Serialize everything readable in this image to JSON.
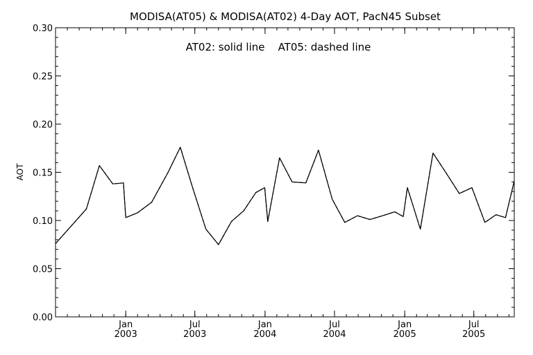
{
  "chart_data": {
    "type": "line",
    "title": "MODISA(AT05) & MODISA(AT02) 4-Day AOT, PacN45 Subset",
    "annotation": "AT02: solid line    AT05: dashed line",
    "xlabel": "",
    "ylabel": "AOT",
    "ylim": [
      0.0,
      0.3
    ],
    "yticks": [
      "0.00",
      "0.05",
      "0.10",
      "0.15",
      "0.20",
      "0.25",
      "0.30"
    ],
    "xlim": [
      "2002-07-01",
      "2005-10-15"
    ],
    "xticks": [
      {
        "date": "2003-01-01",
        "line1": "Jan",
        "line2": "2003"
      },
      {
        "date": "2003-07-01",
        "line1": "Jul",
        "line2": "2003"
      },
      {
        "date": "2004-01-01",
        "line1": "Jan",
        "line2": "2004"
      },
      {
        "date": "2004-07-01",
        "line1": "Jul",
        "line2": "2004"
      },
      {
        "date": "2005-01-01",
        "line1": "Jan",
        "line2": "2005"
      },
      {
        "date": "2005-07-01",
        "line1": "Jul",
        "line2": "2005"
      }
    ],
    "grid": false,
    "series": [
      {
        "name": "AT02",
        "style": "solid",
        "color": "#000000",
        "points": [
          [
            "2002-07-01",
            0.076
          ],
          [
            "2002-09-20",
            0.112
          ],
          [
            "2002-10-24",
            0.157
          ],
          [
            "2002-11-28",
            0.138
          ],
          [
            "2002-12-26",
            0.139
          ],
          [
            "2003-01-01",
            0.103
          ],
          [
            "2003-02-01",
            0.108
          ],
          [
            "2003-03-10",
            0.119
          ],
          [
            "2003-04-22",
            0.15
          ],
          [
            "2003-05-24",
            0.176
          ],
          [
            "2003-06-26",
            0.133
          ],
          [
            "2003-07-30",
            0.091
          ],
          [
            "2003-09-01",
            0.075
          ],
          [
            "2003-10-05",
            0.099
          ],
          [
            "2003-11-06",
            0.11
          ],
          [
            "2003-12-08",
            0.129
          ],
          [
            "2003-12-31",
            0.134
          ],
          [
            "2004-01-08",
            0.099
          ],
          [
            "2004-02-08",
            0.165
          ],
          [
            "2004-03-12",
            0.14
          ],
          [
            "2004-04-17",
            0.139
          ],
          [
            "2004-05-20",
            0.173
          ],
          [
            "2004-06-25",
            0.122
          ],
          [
            "2004-07-28",
            0.098
          ],
          [
            "2004-08-30",
            0.105
          ],
          [
            "2004-10-02",
            0.101
          ],
          [
            "2004-11-04",
            0.105
          ],
          [
            "2004-12-06",
            0.109
          ],
          [
            "2004-12-28",
            0.104
          ],
          [
            "2005-01-08",
            0.134
          ],
          [
            "2005-02-11",
            0.091
          ],
          [
            "2005-03-16",
            0.17
          ],
          [
            "2005-04-20",
            0.149
          ],
          [
            "2005-05-24",
            0.128
          ],
          [
            "2005-06-26",
            0.134
          ],
          [
            "2005-07-30",
            0.098
          ],
          [
            "2005-08-28",
            0.106
          ],
          [
            "2005-09-22",
            0.103
          ],
          [
            "2005-10-15",
            0.141
          ]
        ]
      },
      {
        "name": "AT05",
        "style": "dashed",
        "color": "#000000",
        "points": [
          [
            "2002-07-01",
            0.076
          ],
          [
            "2002-09-20",
            0.112
          ],
          [
            "2002-10-24",
            0.157
          ],
          [
            "2002-11-28",
            0.138
          ],
          [
            "2002-12-26",
            0.139
          ],
          [
            "2003-01-01",
            0.103
          ],
          [
            "2003-02-01",
            0.108
          ],
          [
            "2003-03-10",
            0.119
          ],
          [
            "2003-04-22",
            0.15
          ],
          [
            "2003-05-24",
            0.176
          ],
          [
            "2003-06-26",
            0.133
          ],
          [
            "2003-07-30",
            0.091
          ],
          [
            "2003-09-01",
            0.075
          ],
          [
            "2003-10-05",
            0.099
          ],
          [
            "2003-11-06",
            0.11
          ],
          [
            "2003-12-08",
            0.129
          ],
          [
            "2003-12-31",
            0.134
          ],
          [
            "2004-01-08",
            0.099
          ],
          [
            "2004-02-08",
            0.165
          ],
          [
            "2004-03-12",
            0.14
          ],
          [
            "2004-04-17",
            0.139
          ],
          [
            "2004-05-20",
            0.173
          ],
          [
            "2004-06-25",
            0.122
          ],
          [
            "2004-07-28",
            0.098
          ],
          [
            "2004-08-30",
            0.105
          ],
          [
            "2004-10-02",
            0.101
          ],
          [
            "2004-11-04",
            0.105
          ],
          [
            "2004-12-06",
            0.109
          ],
          [
            "2004-12-28",
            0.104
          ],
          [
            "2005-01-08",
            0.134
          ],
          [
            "2005-02-11",
            0.091
          ],
          [
            "2005-03-16",
            0.17
          ],
          [
            "2005-04-20",
            0.149
          ],
          [
            "2005-05-24",
            0.128
          ],
          [
            "2005-06-26",
            0.134
          ],
          [
            "2005-07-30",
            0.098
          ],
          [
            "2005-08-28",
            0.106
          ],
          [
            "2005-09-22",
            0.103
          ],
          [
            "2005-10-15",
            0.141
          ]
        ]
      }
    ]
  }
}
